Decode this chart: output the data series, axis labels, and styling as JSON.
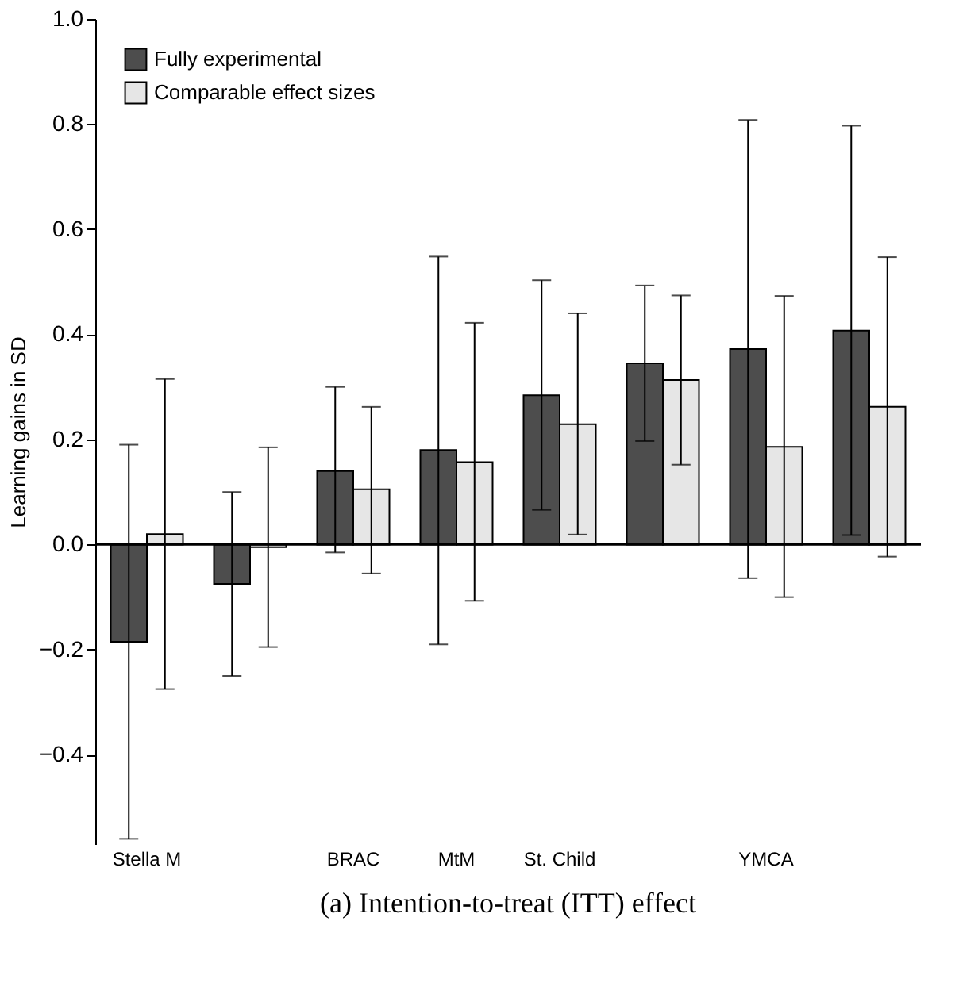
{
  "chart_data": {
    "type": "bar",
    "title": "(a) Intention-to-treat (ITT) effect",
    "ylabel": "Learning gains in SD",
    "categories": [
      "Stella M",
      null,
      "BRAC",
      "MtM",
      "St. Child",
      null,
      "YMCA",
      null
    ],
    "series": [
      {
        "name": "Fully experimental",
        "color": "#4d4d4d",
        "values": [
          -0.185,
          -0.075,
          0.14,
          0.18,
          0.284,
          0.345,
          0.372,
          0.407
        ],
        "errors": [
          [
            -0.56,
            0.19
          ],
          [
            -0.25,
            0.1
          ],
          [
            -0.015,
            0.3
          ],
          [
            -0.19,
            0.548
          ],
          [
            0.066,
            0.503
          ],
          [
            0.197,
            0.493
          ],
          [
            -0.064,
            0.808
          ],
          [
            0.018,
            0.797
          ]
        ]
      },
      {
        "name": "Comparable effect sizes",
        "color": "#e6e6e6",
        "values": [
          0.02,
          -0.005,
          0.105,
          0.157,
          0.229,
          0.313,
          0.186,
          0.262
        ],
        "errors": [
          [
            -0.275,
            0.315
          ],
          [
            -0.195,
            0.185
          ],
          [
            -0.055,
            0.262
          ],
          [
            -0.107,
            0.422
          ],
          [
            0.019,
            0.44
          ],
          [
            0.152,
            0.474
          ],
          [
            -0.1,
            0.473
          ],
          [
            -0.023,
            0.547
          ]
        ]
      }
    ],
    "ylim": [
      -0.57,
      1.0
    ],
    "yticks": [
      -0.4,
      -0.2,
      {
        "value": 0,
        "label": "0.0"
      },
      0.2,
      0.4,
      0.6,
      0.8,
      {
        "value": 1,
        "label": "1.0"
      }
    ],
    "ref_lines": [
      {
        "axis": "y",
        "value": 0
      }
    ],
    "grid": false,
    "legend": "top left"
  }
}
